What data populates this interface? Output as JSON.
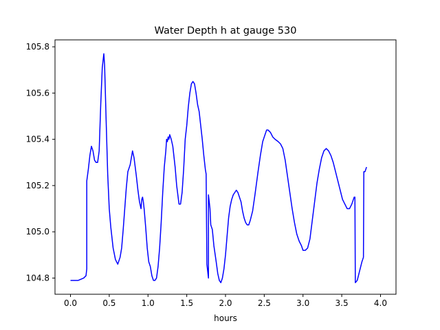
{
  "chart_data": {
    "type": "line",
    "title": "Water Depth h at gauge 530",
    "xlabel": "hours",
    "ylabel": "",
    "xlim": [
      -0.2,
      4.2
    ],
    "ylim": [
      104.73,
      105.83
    ],
    "x_ticks": [
      0.0,
      0.5,
      1.0,
      1.5,
      2.0,
      2.5,
      3.0,
      3.5,
      4.0
    ],
    "x_tick_labels": [
      "0.0",
      "0.5",
      "1.0",
      "1.5",
      "2.0",
      "2.5",
      "3.0",
      "3.5",
      "4.0"
    ],
    "y_ticks": [
      104.8,
      105.0,
      105.2,
      105.4,
      105.6,
      105.8
    ],
    "y_tick_labels": [
      "104.8",
      "105.0",
      "105.2",
      "105.4",
      "105.6",
      "105.8"
    ],
    "grid": false,
    "legend": false,
    "series": [
      {
        "color": "#0000ff",
        "points": [
          [
            0.0,
            104.79
          ],
          [
            0.1,
            104.79
          ],
          [
            0.17,
            104.8
          ],
          [
            0.2,
            104.81
          ],
          [
            0.21,
            104.84
          ],
          [
            0.21,
            105.22
          ],
          [
            0.23,
            105.27
          ],
          [
            0.25,
            105.33
          ],
          [
            0.27,
            105.37
          ],
          [
            0.29,
            105.35
          ],
          [
            0.31,
            105.31
          ],
          [
            0.33,
            105.3
          ],
          [
            0.35,
            105.3
          ],
          [
            0.37,
            105.35
          ],
          [
            0.39,
            105.55
          ],
          [
            0.41,
            105.71
          ],
          [
            0.43,
            105.77
          ],
          [
            0.44,
            105.72
          ],
          [
            0.46,
            105.48
          ],
          [
            0.48,
            105.25
          ],
          [
            0.5,
            105.1
          ],
          [
            0.52,
            105.02
          ],
          [
            0.55,
            104.93
          ],
          [
            0.58,
            104.88
          ],
          [
            0.61,
            104.86
          ],
          [
            0.64,
            104.89
          ],
          [
            0.66,
            104.93
          ],
          [
            0.68,
            105.01
          ],
          [
            0.7,
            105.1
          ],
          [
            0.72,
            105.19
          ],
          [
            0.74,
            105.26
          ],
          [
            0.77,
            105.29
          ],
          [
            0.8,
            105.35
          ],
          [
            0.82,
            105.32
          ],
          [
            0.85,
            105.24
          ],
          [
            0.87,
            105.18
          ],
          [
            0.89,
            105.13
          ],
          [
            0.91,
            105.1
          ],
          [
            0.92,
            105.14
          ],
          [
            0.93,
            105.15
          ],
          [
            0.94,
            105.13
          ],
          [
            0.95,
            105.1
          ],
          [
            0.97,
            105.02
          ],
          [
            0.99,
            104.93
          ],
          [
            1.01,
            104.87
          ],
          [
            1.03,
            104.85
          ],
          [
            1.05,
            104.81
          ],
          [
            1.07,
            104.79
          ],
          [
            1.09,
            104.79
          ],
          [
            1.11,
            104.8
          ],
          [
            1.13,
            104.85
          ],
          [
            1.15,
            104.93
          ],
          [
            1.17,
            105.04
          ],
          [
            1.19,
            105.17
          ],
          [
            1.21,
            105.28
          ],
          [
            1.23,
            105.35
          ],
          [
            1.24,
            105.4
          ],
          [
            1.25,
            105.39
          ],
          [
            1.26,
            105.41
          ],
          [
            1.27,
            105.4
          ],
          [
            1.28,
            105.42
          ],
          [
            1.29,
            105.41
          ],
          [
            1.3,
            105.4
          ],
          [
            1.32,
            105.37
          ],
          [
            1.35,
            105.28
          ],
          [
            1.37,
            105.2
          ],
          [
            1.4,
            105.12
          ],
          [
            1.42,
            105.12
          ],
          [
            1.44,
            105.17
          ],
          [
            1.46,
            105.27
          ],
          [
            1.48,
            105.4
          ],
          [
            1.5,
            105.46
          ],
          [
            1.52,
            105.54
          ],
          [
            1.54,
            105.6
          ],
          [
            1.56,
            105.64
          ],
          [
            1.58,
            105.65
          ],
          [
            1.6,
            105.64
          ],
          [
            1.62,
            105.6
          ],
          [
            1.64,
            105.55
          ],
          [
            1.66,
            105.52
          ],
          [
            1.68,
            105.46
          ],
          [
            1.7,
            105.4
          ],
          [
            1.72,
            105.33
          ],
          [
            1.74,
            105.27
          ],
          [
            1.75,
            105.25
          ],
          [
            1.76,
            104.86
          ],
          [
            1.77,
            104.83
          ],
          [
            1.78,
            104.8
          ],
          [
            1.78,
            105.16
          ],
          [
            1.79,
            105.13
          ],
          [
            1.8,
            105.1
          ],
          [
            1.81,
            105.03
          ],
          [
            1.83,
            105.01
          ],
          [
            1.85,
            104.94
          ],
          [
            1.88,
            104.87
          ],
          [
            1.9,
            104.82
          ],
          [
            1.92,
            104.79
          ],
          [
            1.94,
            104.78
          ],
          [
            1.96,
            104.8
          ],
          [
            1.98,
            104.84
          ],
          [
            2.0,
            104.9
          ],
          [
            2.02,
            104.98
          ],
          [
            2.04,
            105.06
          ],
          [
            2.06,
            105.11
          ],
          [
            2.08,
            105.14
          ],
          [
            2.1,
            105.16
          ],
          [
            2.12,
            105.17
          ],
          [
            2.14,
            105.18
          ],
          [
            2.16,
            105.17
          ],
          [
            2.18,
            105.15
          ],
          [
            2.2,
            105.13
          ],
          [
            2.22,
            105.09
          ],
          [
            2.24,
            105.06
          ],
          [
            2.26,
            105.04
          ],
          [
            2.28,
            105.03
          ],
          [
            2.3,
            105.03
          ],
          [
            2.32,
            105.05
          ],
          [
            2.35,
            105.09
          ],
          [
            2.38,
            105.16
          ],
          [
            2.4,
            105.21
          ],
          [
            2.42,
            105.26
          ],
          [
            2.45,
            105.33
          ],
          [
            2.48,
            105.39
          ],
          [
            2.51,
            105.42
          ],
          [
            2.53,
            105.44
          ],
          [
            2.55,
            105.44
          ],
          [
            2.58,
            105.43
          ],
          [
            2.61,
            105.41
          ],
          [
            2.64,
            105.4
          ],
          [
            2.68,
            105.39
          ],
          [
            2.71,
            105.38
          ],
          [
            2.74,
            105.36
          ],
          [
            2.77,
            105.31
          ],
          [
            2.8,
            105.24
          ],
          [
            2.83,
            105.17
          ],
          [
            2.86,
            105.1
          ],
          [
            2.89,
            105.04
          ],
          [
            2.92,
            104.99
          ],
          [
            2.95,
            104.96
          ],
          [
            2.98,
            104.94
          ],
          [
            3.0,
            104.92
          ],
          [
            3.03,
            104.92
          ],
          [
            3.06,
            104.93
          ],
          [
            3.09,
            104.97
          ],
          [
            3.12,
            105.05
          ],
          [
            3.15,
            105.13
          ],
          [
            3.18,
            105.21
          ],
          [
            3.21,
            105.27
          ],
          [
            3.24,
            105.32
          ],
          [
            3.27,
            105.35
          ],
          [
            3.3,
            105.36
          ],
          [
            3.33,
            105.35
          ],
          [
            3.36,
            105.33
          ],
          [
            3.39,
            105.3
          ],
          [
            3.42,
            105.26
          ],
          [
            3.45,
            105.22
          ],
          [
            3.48,
            105.18
          ],
          [
            3.51,
            105.14
          ],
          [
            3.54,
            105.12
          ],
          [
            3.57,
            105.1
          ],
          [
            3.6,
            105.1
          ],
          [
            3.63,
            105.12
          ],
          [
            3.66,
            105.15
          ],
          [
            3.67,
            105.15
          ],
          [
            3.675,
            104.78
          ],
          [
            3.7,
            104.79
          ],
          [
            3.73,
            104.83
          ],
          [
            3.76,
            104.87
          ],
          [
            3.78,
            104.89
          ],
          [
            3.785,
            105.26
          ],
          [
            3.8,
            105.26
          ],
          [
            3.81,
            105.27
          ],
          [
            3.82,
            105.28
          ]
        ]
      }
    ]
  }
}
